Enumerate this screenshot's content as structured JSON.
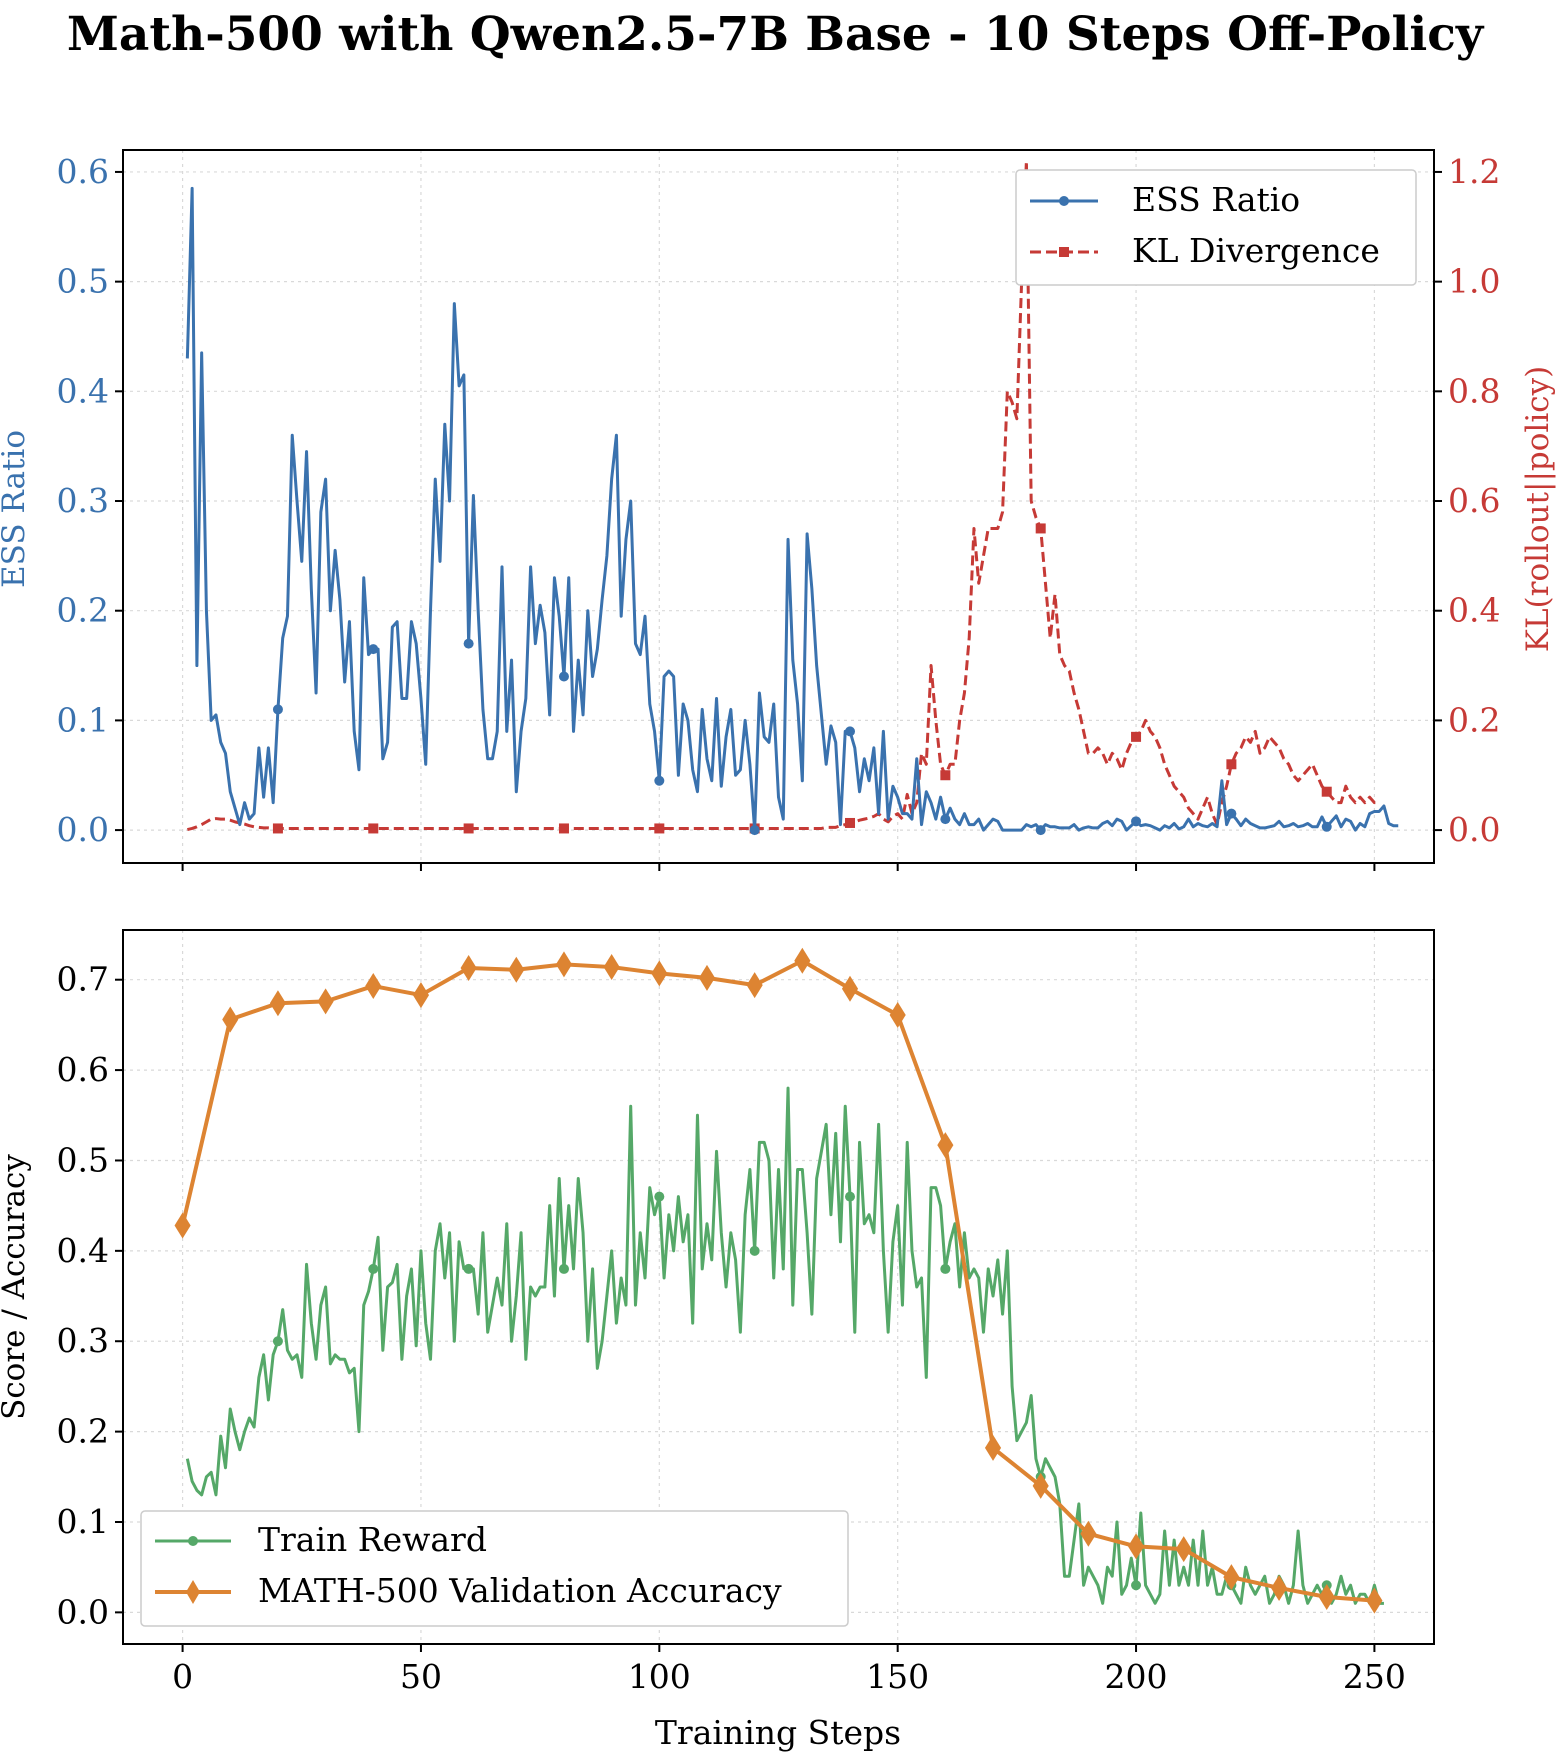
{
  "title": "Math-500 with Qwen2.5-7B Base - 10 Steps Off-Policy",
  "colors": {
    "ess": "#3a72ae",
    "kl": "#c63a36",
    "reward": "#55a868",
    "val": "#dd8432",
    "axis": "#000000",
    "grid": "#d9d9d9"
  },
  "chart_data": [
    {
      "id": "top",
      "type": "line",
      "xlabel": "",
      "ylabel_left": "ESS Ratio",
      "ylabel_right": "KL(rollout||policy)",
      "xlim": [
        -12.5,
        262.5
      ],
      "ylim_left": [
        -0.03,
        0.62
      ],
      "ylim_right": [
        -0.06,
        1.24
      ],
      "xticks": [
        0,
        50,
        100,
        150,
        200,
        250
      ],
      "yticks_left": [
        "0.0",
        "0.1",
        "0.2",
        "0.3",
        "0.4",
        "0.5",
        "0.6"
      ],
      "yticks_right": [
        "0.0",
        "0.2",
        "0.4",
        "0.6",
        "0.8",
        "1.0",
        "1.2"
      ],
      "grid": true,
      "legend": {
        "position": "top-right",
        "entries": [
          "ESS Ratio",
          "KL Divergence"
        ]
      },
      "series": [
        {
          "name": "ESS Ratio",
          "axis": "left",
          "style": "solid",
          "marker": "circle",
          "markevery": 20,
          "x_start": 1,
          "values": [
            0.43,
            0.585,
            0.15,
            0.435,
            0.2,
            0.1,
            0.105,
            0.08,
            0.07,
            0.035,
            0.02,
            0.005,
            0.025,
            0.01,
            0.015,
            0.075,
            0.03,
            0.075,
            0.025,
            0.11,
            0.175,
            0.195,
            0.36,
            0.3,
            0.245,
            0.345,
            0.22,
            0.125,
            0.29,
            0.32,
            0.2,
            0.255,
            0.21,
            0.135,
            0.19,
            0.09,
            0.055,
            0.23,
            0.16,
            0.165,
            0.165,
            0.065,
            0.08,
            0.185,
            0.19,
            0.12,
            0.12,
            0.19,
            0.17,
            0.12,
            0.06,
            0.2,
            0.32,
            0.245,
            0.37,
            0.3,
            0.48,
            0.405,
            0.415,
            0.17,
            0.305,
            0.2,
            0.11,
            0.065,
            0.065,
            0.09,
            0.24,
            0.09,
            0.155,
            0.035,
            0.09,
            0.12,
            0.24,
            0.17,
            0.205,
            0.18,
            0.105,
            0.23,
            0.195,
            0.14,
            0.23,
            0.09,
            0.155,
            0.105,
            0.2,
            0.14,
            0.165,
            0.21,
            0.25,
            0.32,
            0.36,
            0.195,
            0.265,
            0.3,
            0.17,
            0.16,
            0.195,
            0.115,
            0.09,
            0.045,
            0.14,
            0.145,
            0.14,
            0.05,
            0.115,
            0.1,
            0.055,
            0.035,
            0.11,
            0.065,
            0.045,
            0.12,
            0.04,
            0.085,
            0.11,
            0.05,
            0.055,
            0.1,
            0.06,
            0.0,
            0.125,
            0.085,
            0.08,
            0.115,
            0.03,
            0.01,
            0.265,
            0.155,
            0.115,
            0.045,
            0.27,
            0.22,
            0.15,
            0.105,
            0.06,
            0.095,
            0.08,
            0.005,
            0.09,
            0.09,
            0.075,
            0.035,
            0.065,
            0.045,
            0.075,
            0.015,
            0.09,
            0.01,
            0.04,
            0.03,
            0.015,
            0.015,
            0.01,
            0.065,
            0.005,
            0.035,
            0.025,
            0.01,
            0.03,
            0.01,
            0.02,
            0.01,
            0.005,
            0.015,
            0.005,
            0.005,
            0.01,
            0.0,
            0.005,
            0.01,
            0.008,
            0.0,
            0.0,
            0.0,
            0.0,
            0.0,
            0.005,
            0.003,
            0.005,
            0.0,
            0.005,
            0.003,
            0.003,
            0.002,
            0.002,
            0.002,
            0.005,
            0.0,
            0.002,
            0.003,
            0.002,
            0.002,
            0.006,
            0.008,
            0.004,
            0.01,
            0.008,
            0.0,
            0.004,
            0.008,
            0.004,
            0.005,
            0.004,
            0.002,
            0.0,
            0.004,
            0.002,
            0.006,
            0.001,
            0.003,
            0.01,
            0.003,
            0.006,
            0.004,
            0.003,
            0.006,
            0.003,
            0.045,
            0.005,
            0.015,
            0.01,
            0.004,
            0.01,
            0.006,
            0.004,
            0.002,
            0.002,
            0.003,
            0.004,
            0.008,
            0.003,
            0.004,
            0.006,
            0.003,
            0.004,
            0.006,
            0.003,
            0.003,
            0.012,
            0.003,
            0.008,
            0.013,
            0.003,
            0.01,
            0.008,
            0.0,
            0.006,
            0.003,
            0.015,
            0.017,
            0.017,
            0.022,
            0.006,
            0.004,
            0.004
          ]
        },
        {
          "name": "KL Divergence",
          "axis": "right",
          "style": "dashed",
          "marker": "square",
          "markevery": 20,
          "x_start": 1,
          "values": [
            0.001,
            0.003,
            0.006,
            0.01,
            0.015,
            0.02,
            0.021,
            0.02,
            0.02,
            0.018,
            0.015,
            0.013,
            0.011,
            0.008,
            0.006,
            0.005,
            0.004,
            0.004,
            0.003,
            0.003,
            0.003,
            0.003,
            0.003,
            0.003,
            0.003,
            0.003,
            0.003,
            0.003,
            0.003,
            0.003,
            0.003,
            0.003,
            0.003,
            0.003,
            0.003,
            0.003,
            0.003,
            0.003,
            0.003,
            0.003,
            0.003,
            0.003,
            0.003,
            0.003,
            0.003,
            0.003,
            0.003,
            0.003,
            0.003,
            0.003,
            0.003,
            0.003,
            0.003,
            0.003,
            0.003,
            0.003,
            0.003,
            0.003,
            0.003,
            0.003,
            0.003,
            0.003,
            0.003,
            0.003,
            0.003,
            0.003,
            0.003,
            0.003,
            0.003,
            0.003,
            0.003,
            0.003,
            0.003,
            0.003,
            0.003,
            0.003,
            0.003,
            0.003,
            0.003,
            0.003,
            0.003,
            0.003,
            0.003,
            0.003,
            0.003,
            0.003,
            0.003,
            0.003,
            0.003,
            0.003,
            0.003,
            0.003,
            0.003,
            0.003,
            0.003,
            0.003,
            0.003,
            0.003,
            0.003,
            0.003,
            0.003,
            0.003,
            0.003,
            0.003,
            0.003,
            0.003,
            0.003,
            0.003,
            0.003,
            0.003,
            0.003,
            0.003,
            0.003,
            0.003,
            0.003,
            0.003,
            0.003,
            0.003,
            0.003,
            0.003,
            0.003,
            0.003,
            0.003,
            0.003,
            0.003,
            0.003,
            0.003,
            0.003,
            0.003,
            0.003,
            0.003,
            0.003,
            0.003,
            0.003,
            0.005,
            0.005,
            0.005,
            0.008,
            0.01,
            0.013,
            0.015,
            0.018,
            0.02,
            0.022,
            0.025,
            0.03,
            0.02,
            0.015,
            0.025,
            0.03,
            0.02,
            0.065,
            0.03,
            0.05,
            0.14,
            0.12,
            0.3,
            0.2,
            0.12,
            0.1,
            0.12,
            0.12,
            0.2,
            0.25,
            0.35,
            0.55,
            0.45,
            0.5,
            0.55,
            0.55,
            0.55,
            0.58,
            0.8,
            0.78,
            0.75,
            1.0,
            1.22,
            0.6,
            0.57,
            0.55,
            0.45,
            0.35,
            0.43,
            0.32,
            0.3,
            0.29,
            0.25,
            0.22,
            0.18,
            0.14,
            0.14,
            0.15,
            0.14,
            0.12,
            0.14,
            0.13,
            0.11,
            0.14,
            0.16,
            0.17,
            0.18,
            0.2,
            0.18,
            0.17,
            0.15,
            0.12,
            0.1,
            0.08,
            0.07,
            0.06,
            0.04,
            0.03,
            0.02,
            0.04,
            0.06,
            0.03,
            0.01,
            0.05,
            0.08,
            0.12,
            0.14,
            0.15,
            0.17,
            0.16,
            0.18,
            0.14,
            0.15,
            0.17,
            0.16,
            0.15,
            0.13,
            0.12,
            0.1,
            0.09,
            0.1,
            0.11,
            0.12,
            0.1,
            0.08,
            0.07,
            0.06,
            0.05,
            0.05,
            0.08,
            0.06,
            0.05,
            0.06,
            0.05,
            0.06,
            0.05,
            0.05
          ]
        }
      ]
    },
    {
      "id": "bottom",
      "type": "line",
      "xlabel": "Training Steps",
      "ylabel": "Score / Accuracy",
      "xlim": [
        -12.5,
        262.5
      ],
      "ylim": [
        -0.035,
        0.755
      ],
      "xticks": [
        0,
        50,
        100,
        150,
        200,
        250
      ],
      "yticks": [
        "0.0",
        "0.1",
        "0.2",
        "0.3",
        "0.4",
        "0.5",
        "0.6",
        "0.7"
      ],
      "grid": true,
      "legend": {
        "position": "bottom-left",
        "entries": [
          "Train Reward",
          "MATH-500 Validation Accuracy"
        ]
      },
      "series": [
        {
          "name": "Train Reward",
          "style": "solid",
          "marker": "circle",
          "markevery": 20,
          "x_start": 1,
          "values": [
            0.17,
            0.145,
            0.135,
            0.13,
            0.15,
            0.155,
            0.13,
            0.195,
            0.16,
            0.225,
            0.2,
            0.18,
            0.2,
            0.215,
            0.205,
            0.26,
            0.285,
            0.235,
            0.285,
            0.3,
            0.335,
            0.29,
            0.28,
            0.285,
            0.26,
            0.385,
            0.32,
            0.28,
            0.34,
            0.36,
            0.275,
            0.285,
            0.28,
            0.28,
            0.265,
            0.27,
            0.2,
            0.34,
            0.355,
            0.38,
            0.415,
            0.29,
            0.36,
            0.365,
            0.385,
            0.28,
            0.35,
            0.38,
            0.295,
            0.4,
            0.32,
            0.28,
            0.4,
            0.43,
            0.37,
            0.42,
            0.3,
            0.41,
            0.38,
            0.38,
            0.38,
            0.33,
            0.42,
            0.31,
            0.34,
            0.37,
            0.34,
            0.43,
            0.3,
            0.35,
            0.42,
            0.28,
            0.36,
            0.35,
            0.36,
            0.36,
            0.45,
            0.35,
            0.48,
            0.38,
            0.45,
            0.38,
            0.48,
            0.42,
            0.3,
            0.38,
            0.27,
            0.3,
            0.35,
            0.4,
            0.32,
            0.37,
            0.34,
            0.56,
            0.34,
            0.42,
            0.37,
            0.47,
            0.44,
            0.46,
            0.37,
            0.44,
            0.4,
            0.46,
            0.41,
            0.44,
            0.32,
            0.55,
            0.38,
            0.43,
            0.39,
            0.51,
            0.42,
            0.36,
            0.42,
            0.39,
            0.31,
            0.44,
            0.49,
            0.4,
            0.52,
            0.52,
            0.5,
            0.37,
            0.49,
            0.38,
            0.58,
            0.34,
            0.49,
            0.49,
            0.42,
            0.33,
            0.48,
            0.51,
            0.54,
            0.44,
            0.53,
            0.41,
            0.56,
            0.46,
            0.31,
            0.52,
            0.43,
            0.44,
            0.42,
            0.54,
            0.4,
            0.31,
            0.41,
            0.45,
            0.34,
            0.52,
            0.4,
            0.36,
            0.37,
            0.26,
            0.47,
            0.47,
            0.45,
            0.38,
            0.41,
            0.43,
            0.36,
            0.42,
            0.37,
            0.38,
            0.37,
            0.31,
            0.38,
            0.35,
            0.39,
            0.33,
            0.4,
            0.25,
            0.19,
            0.2,
            0.21,
            0.24,
            0.17,
            0.15,
            0.17,
            0.16,
            0.15,
            0.12,
            0.04,
            0.04,
            0.08,
            0.12,
            0.03,
            0.05,
            0.04,
            0.03,
            0.01,
            0.05,
            0.04,
            0.1,
            0.02,
            0.03,
            0.06,
            0.03,
            0.11,
            0.03,
            0.02,
            0.01,
            0.02,
            0.09,
            0.03,
            0.08,
            0.03,
            0.05,
            0.03,
            0.08,
            0.03,
            0.09,
            0.03,
            0.05,
            0.02,
            0.02,
            0.04,
            0.03,
            0.02,
            0.01,
            0.05,
            0.03,
            0.02,
            0.03,
            0.04,
            0.01,
            0.02,
            0.04,
            0.03,
            0.01,
            0.03,
            0.09,
            0.03,
            0.01,
            0.02,
            0.03,
            0.02,
            0.03,
            0.01,
            0.02,
            0.04,
            0.02,
            0.03,
            0.01,
            0.02,
            0.02,
            0.01,
            0.03,
            0.01,
            0.01
          ]
        },
        {
          "name": "MATH-500 Validation Accuracy",
          "style": "solid",
          "marker": "diamond",
          "x": [
            0,
            10,
            20,
            30,
            40,
            50,
            60,
            70,
            80,
            90,
            100,
            110,
            120,
            130,
            140,
            150,
            160,
            170,
            180,
            190,
            200,
            210,
            220,
            230,
            240,
            250
          ],
          "values": [
            0.428,
            0.656,
            0.674,
            0.676,
            0.693,
            0.683,
            0.713,
            0.711,
            0.717,
            0.714,
            0.707,
            0.702,
            0.694,
            0.721,
            0.69,
            0.661,
            0.517,
            0.182,
            0.14,
            0.087,
            0.073,
            0.07,
            0.039,
            0.027,
            0.017,
            0.013
          ]
        }
      ]
    }
  ]
}
